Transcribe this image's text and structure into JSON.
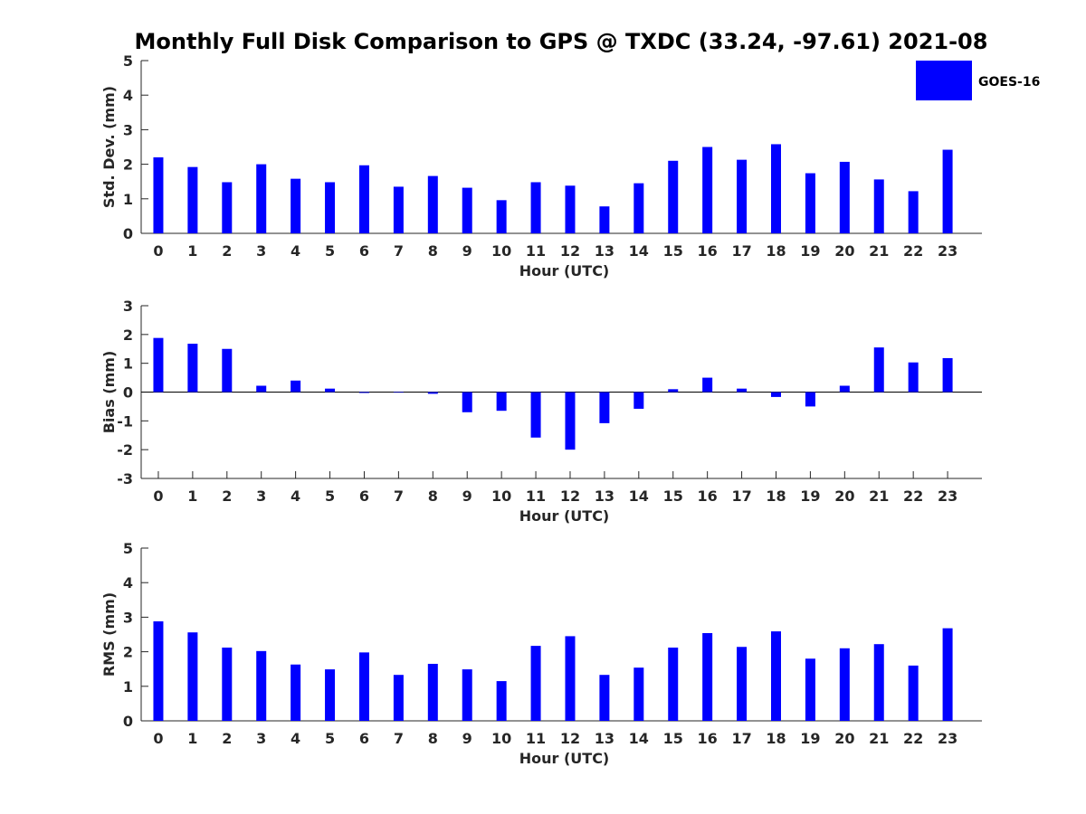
{
  "title": "Monthly Full Disk Comparison to GPS @ TXDC (33.24, -97.61) 2021-08",
  "legend": {
    "label": "GOES-16",
    "color": "#0000ff"
  },
  "chart_data": [
    {
      "type": "bar",
      "title": "Monthly Full Disk Comparison to GPS @ TXDC (33.24, -97.61) 2021-08",
      "xlabel": "Hour (UTC)",
      "ylabel": "Std. Dev. (mm)",
      "ylim": [
        0,
        5
      ],
      "yticks": [
        0,
        1,
        2,
        3,
        4,
        5
      ],
      "categories": [
        "0",
        "1",
        "2",
        "3",
        "4",
        "5",
        "6",
        "7",
        "8",
        "9",
        "10",
        "11",
        "12",
        "13",
        "14",
        "15",
        "16",
        "17",
        "18",
        "19",
        "20",
        "21",
        "22",
        "23"
      ],
      "series": [
        {
          "name": "GOES-16",
          "color": "#0000ff",
          "values": [
            2.2,
            1.92,
            1.48,
            2.0,
            1.58,
            1.48,
            1.97,
            1.35,
            1.66,
            1.32,
            0.96,
            1.48,
            1.38,
            0.78,
            1.45,
            2.1,
            2.5,
            2.13,
            2.58,
            1.74,
            2.07,
            1.56,
            1.22,
            2.42
          ]
        }
      ]
    },
    {
      "type": "bar",
      "xlabel": "Hour (UTC)",
      "ylabel": "Bias (mm)",
      "ylim": [
        -3,
        3
      ],
      "yticks": [
        -3,
        -2,
        -1,
        0,
        1,
        2,
        3
      ],
      "categories": [
        "0",
        "1",
        "2",
        "3",
        "4",
        "5",
        "6",
        "7",
        "8",
        "9",
        "10",
        "11",
        "12",
        "13",
        "14",
        "15",
        "16",
        "17",
        "18",
        "19",
        "20",
        "21",
        "22",
        "23"
      ],
      "series": [
        {
          "name": "GOES-16",
          "color": "#0000ff",
          "values": [
            1.88,
            1.68,
            1.5,
            0.22,
            0.4,
            0.12,
            -0.03,
            -0.02,
            -0.06,
            -0.7,
            -0.65,
            -1.58,
            -2.0,
            -1.08,
            -0.58,
            0.1,
            0.5,
            0.12,
            -0.17,
            -0.5,
            0.22,
            1.55,
            1.03,
            1.18
          ]
        }
      ]
    },
    {
      "type": "bar",
      "xlabel": "Hour (UTC)",
      "ylabel": "RMS (mm)",
      "ylim": [
        0,
        5
      ],
      "yticks": [
        0,
        1,
        2,
        3,
        4,
        5
      ],
      "categories": [
        "0",
        "1",
        "2",
        "3",
        "4",
        "5",
        "6",
        "7",
        "8",
        "9",
        "10",
        "11",
        "12",
        "13",
        "14",
        "15",
        "16",
        "17",
        "18",
        "19",
        "20",
        "21",
        "22",
        "23"
      ],
      "series": [
        {
          "name": "GOES-16",
          "color": "#0000ff",
          "values": [
            2.88,
            2.56,
            2.12,
            2.02,
            1.63,
            1.49,
            1.98,
            1.33,
            1.65,
            1.49,
            1.15,
            2.17,
            2.45,
            1.33,
            1.54,
            2.12,
            2.54,
            2.14,
            2.59,
            1.8,
            2.1,
            2.22,
            1.6,
            2.68
          ]
        }
      ]
    }
  ]
}
